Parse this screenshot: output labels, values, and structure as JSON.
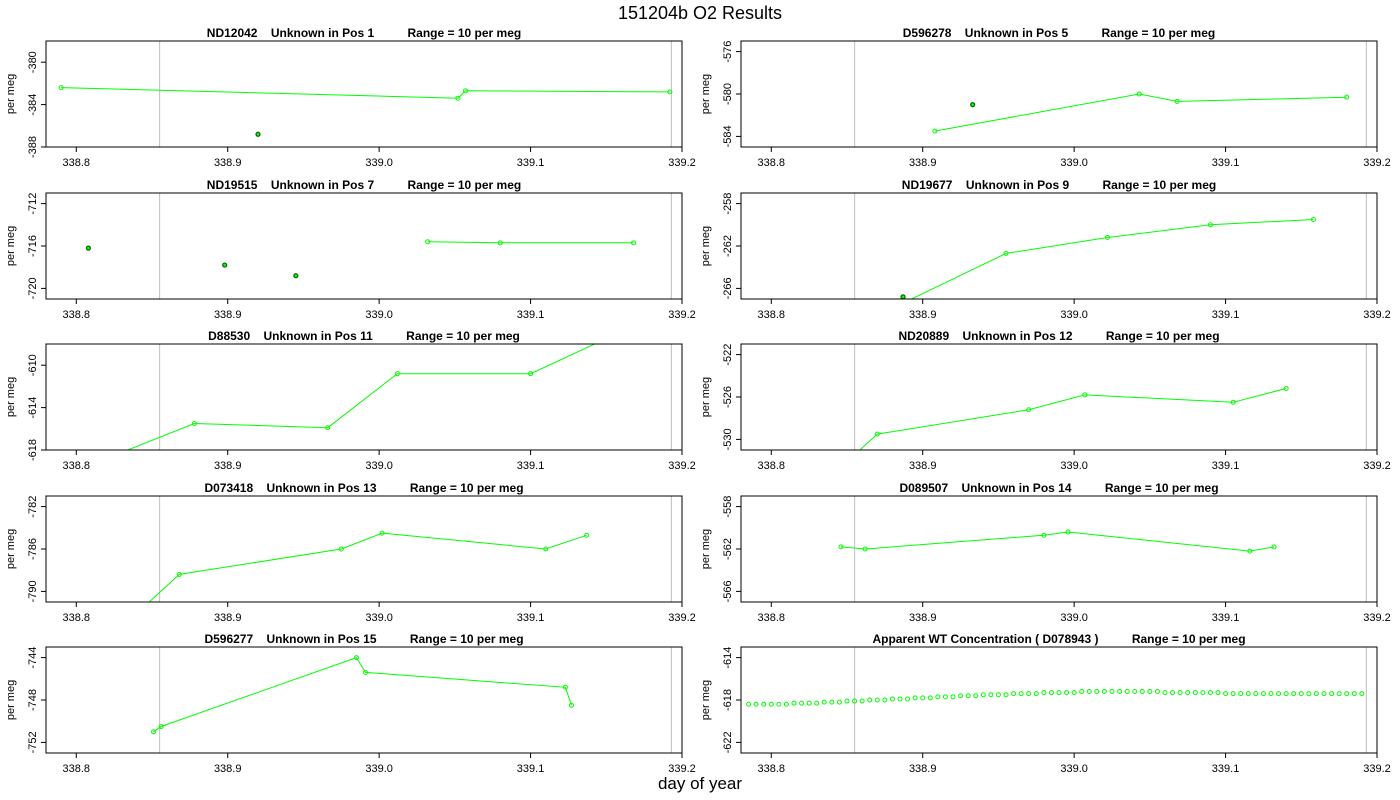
{
  "page": {
    "title": "151204b  O2 Results",
    "xlabel": "day of year"
  },
  "style": {
    "series_color": "#00ff00",
    "outlier_color": "#006400",
    "marker_line_color": "#c8c8c8"
  },
  "chart_data": [
    {
      "type": "line",
      "title": "ND12042    Unknown in Pos 1          Range = 10 per meg",
      "ylabel": "per meg",
      "xlim": [
        338.78,
        339.2
      ],
      "ylim": [
        -388,
        -378
      ],
      "yticks": [
        -380,
        -384,
        -388
      ],
      "xticks": [
        338.8,
        338.9,
        339.0,
        339.1,
        339.2
      ],
      "vlines": [
        338.855,
        339.193
      ],
      "series": [
        {
          "x": [
            338.79,
            339.052,
            339.057,
            339.192
          ],
          "y": [
            -382.4,
            -383.4,
            -382.7,
            -382.8
          ]
        }
      ],
      "outliers": [
        {
          "x": 338.92,
          "y": -386.8
        },
        {
          "x": 338.922,
          "y": -388.2
        }
      ]
    },
    {
      "type": "line",
      "title": "D596278    Unknown in Pos 5          Range = 10 per meg",
      "ylabel": "per meg",
      "xlim": [
        338.78,
        339.2
      ],
      "ylim": [
        -585,
        -575
      ],
      "yticks": [
        -576,
        -580,
        -584
      ],
      "xticks": [
        338.8,
        338.9,
        339.0,
        339.1,
        339.2
      ],
      "vlines": [
        338.855,
        339.193
      ],
      "series": [
        {
          "x": [
            338.908,
            339.043,
            339.068,
            339.18
          ],
          "y": [
            -583.5,
            -580.0,
            -580.7,
            -580.3
          ]
        }
      ],
      "outliers": [
        {
          "x": 338.933,
          "y": -581.0
        }
      ]
    },
    {
      "type": "line",
      "title": "ND19515    Unknown in Pos 7          Range = 10 per meg",
      "ylabel": "per meg",
      "xlim": [
        338.78,
        339.2
      ],
      "ylim": [
        -721,
        -711
      ],
      "yticks": [
        -712,
        -716,
        -720
      ],
      "xticks": [
        338.8,
        338.9,
        339.0,
        339.1,
        339.2
      ],
      "vlines": [
        338.855,
        339.193
      ],
      "series": [
        {
          "x": [
            339.032,
            339.08,
            339.168
          ],
          "y": [
            -715.6,
            -715.7,
            -715.7
          ]
        }
      ],
      "outliers": [
        {
          "x": 338.808,
          "y": -716.2
        },
        {
          "x": 338.898,
          "y": -717.8
        },
        {
          "x": 338.945,
          "y": -718.8
        }
      ]
    },
    {
      "type": "line",
      "title": "ND19677    Unknown in Pos 9          Range = 10 per meg",
      "ylabel": "per meg",
      "xlim": [
        338.78,
        339.2
      ],
      "ylim": [
        -267,
        -257
      ],
      "yticks": [
        -258,
        -262,
        -266
      ],
      "xticks": [
        338.8,
        338.9,
        339.0,
        339.1,
        339.2
      ],
      "vlines": [
        338.855,
        339.193
      ],
      "series": [
        {
          "x": [
            338.82,
            338.955,
            339.022,
            339.09,
            339.158
          ],
          "y": [
            -272.0,
            -262.7,
            -261.2,
            -260.0,
            -259.5
          ]
        }
      ],
      "outliers": [
        {
          "x": 338.887,
          "y": -266.8
        }
      ]
    },
    {
      "type": "line",
      "title": "D88530    Unknown in Pos 11          Range = 10 per meg",
      "ylabel": "per meg",
      "xlim": [
        338.78,
        339.2
      ],
      "ylim": [
        -618,
        -608
      ],
      "yticks": [
        -610,
        -614,
        -618
      ],
      "xticks": [
        338.8,
        338.9,
        339.0,
        339.1,
        339.2
      ],
      "vlines": [
        338.855,
        339.193
      ],
      "series": [
        {
          "x": [
            338.79,
            338.878,
            338.966,
            339.012,
            339.1,
            339.165
          ],
          "y": [
            -620.5,
            -615.5,
            -615.9,
            -610.8,
            -610.8,
            -606.5
          ]
        }
      ],
      "outliers": []
    },
    {
      "type": "line",
      "title": "ND20889    Unknown in Pos 12          Range = 10 per meg",
      "ylabel": "per meg",
      "xlim": [
        338.78,
        339.2
      ],
      "ylim": [
        -531,
        -521
      ],
      "yticks": [
        -522,
        -526,
        -530
      ],
      "xticks": [
        338.8,
        338.9,
        339.0,
        339.1,
        339.2
      ],
      "vlines": [
        338.855,
        339.193
      ],
      "series": [
        {
          "x": [
            338.82,
            338.87,
            338.97,
            339.007,
            339.105,
            339.14
          ],
          "y": [
            -536.0,
            -529.5,
            -527.2,
            -525.8,
            -526.5,
            -525.2
          ]
        }
      ],
      "outliers": []
    },
    {
      "type": "line",
      "title": "D073418    Unknown in Pos 13          Range = 10 per meg",
      "ylabel": "per meg",
      "xlim": [
        338.78,
        339.2
      ],
      "ylim": [
        -791,
        -781
      ],
      "yticks": [
        -782,
        -786,
        -790
      ],
      "xticks": [
        338.8,
        338.9,
        339.0,
        339.1,
        339.2
      ],
      "vlines": [
        338.855,
        339.193
      ],
      "series": [
        {
          "x": [
            338.81,
            338.868,
            338.975,
            339.002,
            339.11,
            339.137
          ],
          "y": [
            -796.0,
            -788.4,
            -786.0,
            -784.5,
            -786.0,
            -784.7
          ]
        }
      ],
      "outliers": []
    },
    {
      "type": "line",
      "title": "D089507    Unknown in Pos 14          Range = 10 per meg",
      "ylabel": "per meg",
      "xlim": [
        338.78,
        339.2
      ],
      "ylim": [
        -567,
        -557
      ],
      "yticks": [
        -558,
        -562,
        -566
      ],
      "xticks": [
        338.8,
        338.9,
        339.0,
        339.1,
        339.2
      ],
      "vlines": [
        338.855,
        339.193
      ],
      "series": [
        {
          "x": [
            338.846,
            338.862,
            338.98,
            338.996,
            339.116,
            339.132
          ],
          "y": [
            -561.8,
            -562.0,
            -560.7,
            -560.4,
            -562.2,
            -561.8
          ]
        }
      ],
      "outliers": []
    },
    {
      "type": "line",
      "title": "D596277    Unknown in Pos 15          Range = 10 per meg",
      "ylabel": "per meg",
      "xlim": [
        338.78,
        339.2
      ],
      "ylim": [
        -753,
        -743
      ],
      "yticks": [
        -744,
        -748,
        -752
      ],
      "xticks": [
        338.8,
        338.9,
        339.0,
        339.1,
        339.2
      ],
      "vlines": [
        338.855,
        339.193
      ],
      "series": [
        {
          "x": [
            338.851,
            338.856,
            338.985,
            338.991,
            339.123,
            339.127
          ],
          "y": [
            -751.0,
            -750.5,
            -744.0,
            -745.4,
            -746.8,
            -748.5
          ]
        }
      ],
      "outliers": []
    },
    {
      "type": "scatter",
      "title": "Apparent WT Concentration ( D078943 )          Range = 10 per meg",
      "ylabel": "per meg",
      "xlim": [
        338.78,
        339.2
      ],
      "ylim": [
        -623,
        -613
      ],
      "yticks": [
        -614,
        -618,
        -622
      ],
      "xticks": [
        338.8,
        338.9,
        339.0,
        339.1,
        339.2
      ],
      "vlines": [
        338.855,
        339.193
      ],
      "series": [
        {
          "x": [
            338.785,
            338.79,
            338.795,
            338.8,
            338.805,
            338.81,
            338.815,
            338.82,
            338.825,
            338.83,
            338.835,
            338.84,
            338.845,
            338.85,
            338.855,
            338.86,
            338.865,
            338.87,
            338.875,
            338.88,
            338.885,
            338.89,
            338.895,
            338.9,
            338.905,
            338.91,
            338.915,
            338.92,
            338.925,
            338.93,
            338.935,
            338.94,
            338.945,
            338.95,
            338.955,
            338.96,
            338.965,
            338.97,
            338.975,
            338.98,
            338.985,
            338.99,
            338.995,
            339.0,
            339.005,
            339.01,
            339.015,
            339.02,
            339.025,
            339.03,
            339.035,
            339.04,
            339.045,
            339.05,
            339.055,
            339.06,
            339.065,
            339.07,
            339.075,
            339.08,
            339.085,
            339.09,
            339.095,
            339.1,
            339.105,
            339.11,
            339.115,
            339.12,
            339.125,
            339.13,
            339.135,
            339.14,
            339.145,
            339.15,
            339.155,
            339.16,
            339.165,
            339.17,
            339.175,
            339.18,
            339.185,
            339.19
          ],
          "y": [
            -618.4,
            -618.4,
            -618.4,
            -618.4,
            -618.4,
            -618.4,
            -618.3,
            -618.3,
            -618.3,
            -618.3,
            -618.2,
            -618.2,
            -618.2,
            -618.1,
            -618.1,
            -618.1,
            -618.0,
            -618.0,
            -618.0,
            -617.9,
            -617.9,
            -617.9,
            -617.8,
            -617.8,
            -617.8,
            -617.7,
            -617.7,
            -617.7,
            -617.6,
            -617.6,
            -617.6,
            -617.5,
            -617.5,
            -617.5,
            -617.5,
            -617.4,
            -617.4,
            -617.4,
            -617.4,
            -617.3,
            -617.3,
            -617.3,
            -617.3,
            -617.3,
            -617.2,
            -617.2,
            -617.2,
            -617.2,
            -617.2,
            -617.2,
            -617.2,
            -617.2,
            -617.2,
            -617.2,
            -617.2,
            -617.3,
            -617.3,
            -617.3,
            -617.3,
            -617.3,
            -617.3,
            -617.3,
            -617.3,
            -617.4,
            -617.4,
            -617.4,
            -617.4,
            -617.4,
            -617.4,
            -617.4,
            -617.4,
            -617.4,
            -617.4,
            -617.4,
            -617.4,
            -617.4,
            -617.4,
            -617.4,
            -617.4,
            -617.4,
            -617.4,
            -617.4
          ]
        }
      ],
      "outliers": []
    }
  ]
}
